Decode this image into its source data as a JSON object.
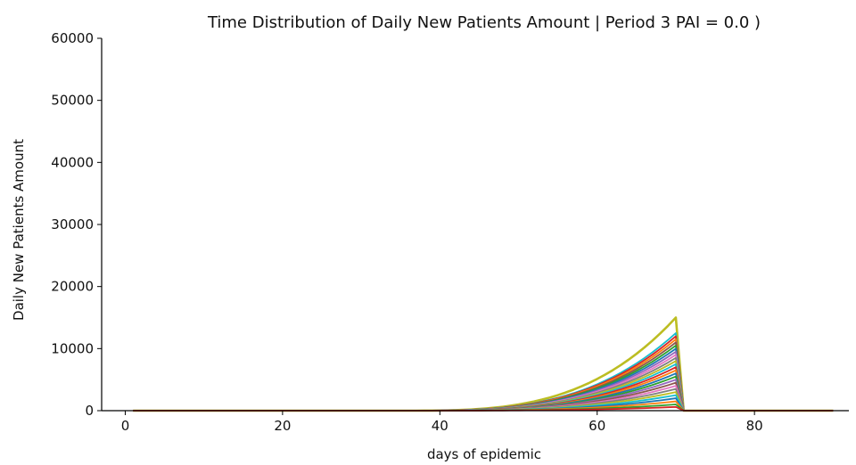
{
  "chart_data": {
    "type": "line",
    "title": "Time Distribution of Daily New Patients Amount | Period 3 PAI = 0.0 )",
    "xlabel": "days of epidemic",
    "ylabel": "Daily New Patients Amount",
    "xlim": [
      -3,
      92
    ],
    "ylim": [
      0,
      60000
    ],
    "xticks": [
      0,
      20,
      40,
      60,
      80
    ],
    "yticks": [
      0,
      10000,
      20000,
      30000,
      40000,
      50000,
      60000
    ],
    "grid": false,
    "legend": "none",
    "series_shape": {
      "x_start": 1,
      "x_end": 90,
      "growth_start_day": 35,
      "peak_day": 70,
      "drop_day": 71
    },
    "series": [
      {
        "peak": 15000,
        "color": "#bcbd22"
      },
      {
        "peak": 12500,
        "color": "#17becf"
      },
      {
        "peak": 12000,
        "color": "#d62728"
      },
      {
        "peak": 11500,
        "color": "#ff7f0e"
      },
      {
        "peak": 11000,
        "color": "#8c564b"
      },
      {
        "peak": 10500,
        "color": "#2ca02c"
      },
      {
        "peak": 10000,
        "color": "#1f77b4"
      },
      {
        "peak": 9500,
        "color": "#9467bd"
      },
      {
        "peak": 9000,
        "color": "#e377c2"
      },
      {
        "peak": 8500,
        "color": "#7f7f7f"
      },
      {
        "peak": 8000,
        "color": "#bcbd22"
      },
      {
        "peak": 7500,
        "color": "#17becf"
      },
      {
        "peak": 7000,
        "color": "#d62728"
      },
      {
        "peak": 6500,
        "color": "#ff7f0e"
      },
      {
        "peak": 6000,
        "color": "#1f77b4"
      },
      {
        "peak": 5500,
        "color": "#2ca02c"
      },
      {
        "peak": 5000,
        "color": "#9467bd"
      },
      {
        "peak": 4500,
        "color": "#8c564b"
      },
      {
        "peak": 4000,
        "color": "#e377c2"
      },
      {
        "peak": 3500,
        "color": "#7f7f7f"
      },
      {
        "peak": 3000,
        "color": "#bcbd22"
      },
      {
        "peak": 2500,
        "color": "#17becf"
      },
      {
        "peak": 2000,
        "color": "#1f77b4"
      },
      {
        "peak": 1500,
        "color": "#ff7f0e"
      },
      {
        "peak": 1000,
        "color": "#2ca02c"
      },
      {
        "peak": 600,
        "color": "#d62728"
      }
    ]
  }
}
